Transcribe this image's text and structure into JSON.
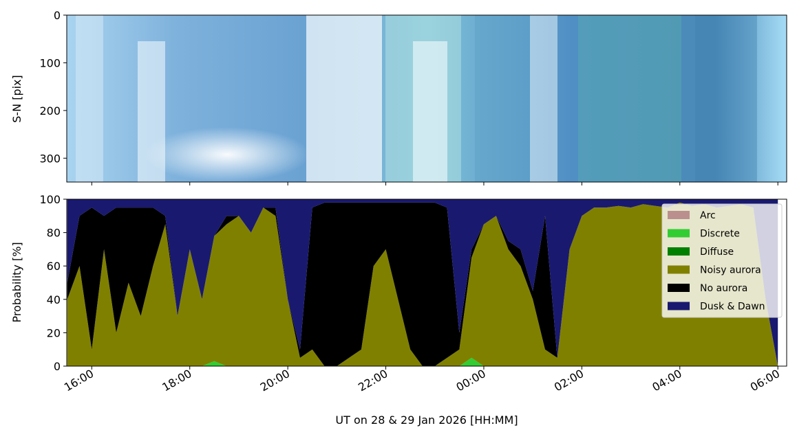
{
  "chart_data": [
    {
      "type": "image",
      "ylabel": "S-N [pix]",
      "ylim": [
        350,
        0
      ],
      "yticks": [
        0,
        100,
        200,
        300
      ]
    },
    {
      "type": "stacked_area",
      "ylabel": "Probability [%]",
      "xlabel": "UT on 28 & 29 Jan 2026 [HH:MM]",
      "xlim": [
        15.49,
        30.18
      ],
      "xticks": [
        {
          "value": 16,
          "label": "16:00"
        },
        {
          "value": 18,
          "label": "18:00"
        },
        {
          "value": 20,
          "label": "20:00"
        },
        {
          "value": 22,
          "label": "22:00"
        },
        {
          "value": 24,
          "label": "00:00"
        },
        {
          "value": 26,
          "label": "02:00"
        },
        {
          "value": 28,
          "label": "04:00"
        },
        {
          "value": 30,
          "label": "06:00"
        }
      ],
      "ylim": [
        0,
        100
      ],
      "yticks": [
        0,
        20,
        40,
        60,
        80,
        100
      ],
      "legend": "upper right",
      "x": [
        15.5,
        15.75,
        16,
        16.25,
        16.5,
        16.75,
        17,
        17.25,
        17.5,
        17.75,
        18,
        18.25,
        18.5,
        18.75,
        19,
        19.25,
        19.5,
        19.75,
        20,
        20.25,
        20.5,
        20.75,
        21,
        21.25,
        21.5,
        21.75,
        22,
        22.25,
        22.5,
        22.75,
        23,
        23.25,
        23.5,
        23.75,
        24,
        24.25,
        24.5,
        24.75,
        25,
        25.25,
        25.5,
        25.75,
        26,
        26.25,
        26.5,
        26.75,
        27,
        27.25,
        27.5,
        27.75,
        28,
        28.25,
        28.5,
        28.75,
        29,
        29.25,
        29.5,
        29.75,
        30
      ],
      "series": [
        {
          "name": "Arc",
          "color": "#bc8f8f",
          "values": [
            0,
            0,
            0,
            0,
            0,
            0,
            0,
            0,
            0,
            0,
            0,
            0,
            0,
            0,
            0,
            0,
            0,
            0,
            0,
            0,
            0,
            0,
            0,
            0,
            0,
            0,
            0,
            0,
            0,
            0,
            0,
            0,
            0,
            0,
            0,
            0,
            0,
            0,
            0,
            0,
            0,
            0,
            0,
            0,
            0,
            0,
            0,
            0,
            0,
            0,
            0,
            0,
            0,
            0,
            0,
            0,
            0,
            0,
            0
          ]
        },
        {
          "name": "Discrete",
          "color": "#32cd32",
          "values": [
            0,
            0,
            0,
            0,
            0,
            0,
            0,
            0,
            0,
            0,
            0,
            0,
            3,
            0,
            0,
            0,
            0,
            0,
            0,
            0,
            0,
            0,
            0,
            0,
            0,
            0,
            0,
            0,
            0,
            0,
            0,
            0,
            0,
            5,
            0,
            0,
            0,
            0,
            0,
            0,
            0,
            0,
            0,
            0,
            0,
            0,
            0,
            0,
            0,
            0,
            0,
            0,
            0,
            0,
            0,
            0,
            0,
            0,
            0
          ]
        },
        {
          "name": "Diffuse",
          "color": "#008000",
          "values": [
            0,
            0,
            0,
            0,
            0,
            0,
            0,
            0,
            0,
            0,
            0,
            0,
            0,
            0,
            0,
            0,
            0,
            0,
            0,
            0,
            0,
            0,
            0,
            0,
            0,
            0,
            0,
            0,
            0,
            0,
            0,
            0,
            0,
            0,
            0,
            0,
            0,
            0,
            0,
            0,
            0,
            0,
            0,
            0,
            0,
            0,
            0,
            0,
            0,
            0,
            0,
            0,
            0,
            0,
            0,
            0,
            0,
            0,
            0
          ]
        },
        {
          "name": "Noisy aurora",
          "color": "#808000",
          "values": [
            40,
            60,
            10,
            70,
            20,
            50,
            30,
            60,
            85,
            30,
            70,
            40,
            75,
            85,
            90,
            80,
            95,
            90,
            40,
            5,
            10,
            0,
            0,
            5,
            10,
            60,
            70,
            40,
            10,
            0,
            0,
            5,
            10,
            60,
            85,
            90,
            70,
            60,
            40,
            10,
            5,
            70,
            90,
            95,
            95,
            96,
            95,
            97,
            96,
            95,
            98,
            96,
            97,
            95,
            96,
            97,
            95,
            40,
            0
          ]
        },
        {
          "name": "No aurora",
          "color": "#000000",
          "values": [
            10,
            30,
            85,
            20,
            75,
            45,
            65,
            35,
            5,
            0,
            0,
            0,
            0,
            5,
            0,
            0,
            0,
            5,
            0,
            5,
            85,
            98,
            98,
            93,
            88,
            38,
            28,
            58,
            88,
            98,
            98,
            90,
            10,
            5,
            0,
            0,
            5,
            10,
            5,
            80,
            0,
            0,
            0,
            0,
            0,
            0,
            0,
            0,
            0,
            0,
            0,
            0,
            0,
            0,
            0,
            0,
            0,
            0,
            0
          ]
        },
        {
          "name": "Dusk & Dawn",
          "color": "#191970",
          "values": [
            50,
            10,
            5,
            10,
            5,
            5,
            5,
            5,
            10,
            70,
            30,
            60,
            22,
            10,
            10,
            20,
            5,
            5,
            60,
            90,
            5,
            2,
            2,
            2,
            2,
            2,
            2,
            2,
            2,
            2,
            2,
            5,
            80,
            30,
            15,
            10,
            25,
            30,
            55,
            10,
            95,
            30,
            10,
            5,
            5,
            4,
            5,
            3,
            4,
            5,
            2,
            4,
            3,
            5,
            4,
            3,
            5,
            60,
            100
          ]
        }
      ]
    }
  ]
}
